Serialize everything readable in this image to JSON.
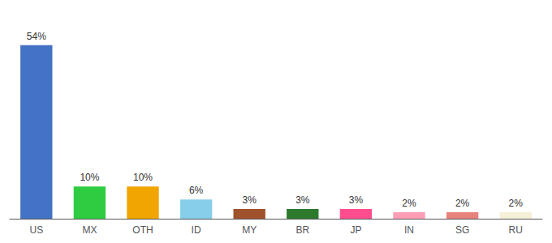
{
  "chart_data": {
    "type": "bar",
    "categories": [
      "US",
      "MX",
      "OTH",
      "ID",
      "MY",
      "BR",
      "JP",
      "IN",
      "SG",
      "RU"
    ],
    "values": [
      54,
      10,
      10,
      6,
      3,
      3,
      3,
      2,
      2,
      2
    ],
    "value_labels": [
      "54%",
      "10%",
      "10%",
      "6%",
      "3%",
      "3%",
      "3%",
      "2%",
      "2%",
      "2%"
    ],
    "colors": [
      "#4472c4",
      "#2ecc40",
      "#f0a500",
      "#87ceeb",
      "#a0522d",
      "#2d7a2d",
      "#ff4d8d",
      "#ff9eb5",
      "#e8827c",
      "#f5f0d8"
    ],
    "ylim": [
      0,
      62
    ],
    "data_labels": true,
    "tick_labels": "x",
    "grid": false
  }
}
